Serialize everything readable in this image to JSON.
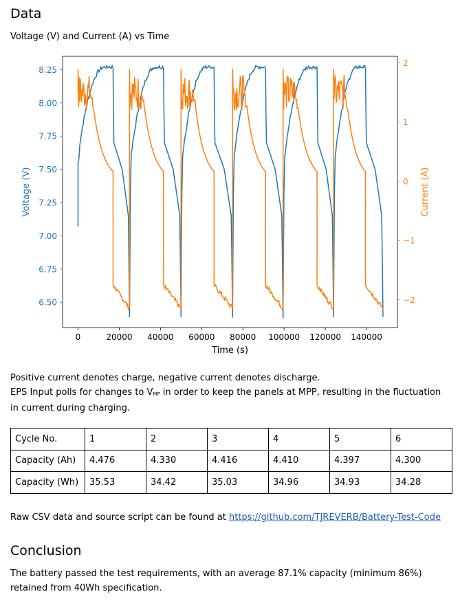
{
  "section_data": {
    "heading": "Data",
    "caption": "Voltage (V) and Current (A) vs Time"
  },
  "chart_data": {
    "type": "line",
    "title": "Voltage (V) and Current (A) vs Time",
    "xlabel": "Time (s)",
    "ylabel_left": "Voltage (V)",
    "ylabel_right": "Current (A)",
    "xlim": [
      -7500,
      155000
    ],
    "ylim_left": [
      6.31,
      8.35
    ],
    "ylim_right": [
      -2.47,
      2.11
    ],
    "xticks": [
      0,
      20000,
      40000,
      60000,
      80000,
      100000,
      120000,
      140000
    ],
    "yticks_left": [
      6.5,
      6.75,
      7.0,
      7.25,
      7.5,
      7.75,
      8.0,
      8.25
    ],
    "yticks_left_labels": [
      "6.50",
      "6.75",
      "7.00",
      "7.25",
      "7.50",
      "7.75",
      "8.00",
      "8.25"
    ],
    "yticks_right": [
      -2,
      -1,
      0,
      1,
      2
    ],
    "yticks_right_labels": [
      "−2",
      "−1",
      "0",
      "1",
      "2"
    ],
    "colors": {
      "voltage": "#1f77b4",
      "current": "#ff7f0e"
    },
    "cycles": [
      {
        "charge_start": 0,
        "charge_end": 17000,
        "discharge_end": 25000
      },
      {
        "charge_start": 25000,
        "charge_end": 41500,
        "discharge_end": 50000
      },
      {
        "charge_start": 50000,
        "charge_end": 66000,
        "discharge_end": 75000
      },
      {
        "charge_start": 75000,
        "charge_end": 91000,
        "discharge_end": 99500
      },
      {
        "charge_start": 99500,
        "charge_end": 116000,
        "discharge_end": 124000
      },
      {
        "charge_start": 124000,
        "charge_end": 139500,
        "discharge_end": 148000
      }
    ],
    "voltage": {
      "start": 7.07,
      "max": 8.27,
      "min": 6.39
    },
    "current": {
      "charge_peak": 1.9,
      "charge_level": 1.5,
      "charge_taper_end": 0.05,
      "discharge_start": -1.75,
      "discharge_end": -2.15
    }
  },
  "notes": {
    "line1": "Positive current denotes charge, negative current denotes discharge.",
    "line2_pre": "EPS Input polls for changes to V",
    "line2_sub": "MP",
    "line2_post": " in order to keep the panels at MPP, resulting in the fluctuation in current during charging."
  },
  "table": {
    "rows": [
      {
        "label": "Cycle No.",
        "values": [
          "1",
          "2",
          "3",
          "4",
          "5",
          "6"
        ]
      },
      {
        "label": "Capacity (Ah)",
        "values": [
          "4.476",
          "4.330",
          "4.416",
          "4.410",
          "4.397",
          "4.300"
        ]
      },
      {
        "label": "Capacity (Wh)",
        "values": [
          "35.53",
          "34.42",
          "35.03",
          "34.96",
          "34.93",
          "34.28"
        ]
      }
    ]
  },
  "raw": {
    "text": "Raw CSV data and source script can be found at ",
    "link": "https://github.com/TJREVERB/Battery-Test-Code"
  },
  "conclusion": {
    "heading": "Conclusion",
    "text": "The battery passed the test requirements, with an average 87.1% capacity (minimum 86%) retained from 40Wh specification."
  }
}
